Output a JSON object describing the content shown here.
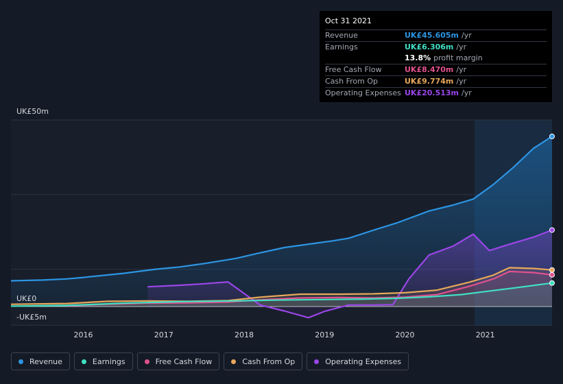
{
  "tooltip": {
    "date": "Oct 31 2021",
    "rows": [
      {
        "label": "Revenue",
        "value": "UK£45.605m",
        "unit": "/yr",
        "color": "#2d95e3"
      },
      {
        "label": "Earnings",
        "value": "UK£6.306m",
        "unit": "/yr",
        "color": "#40e0c4"
      },
      {
        "label": "",
        "value": "13.8%",
        "unit": "profit margin",
        "color": "#ffffff"
      },
      {
        "label": "Free Cash Flow",
        "value": "UK£8.470m",
        "unit": "/yr",
        "color": "#e0528e"
      },
      {
        "label": "Cash From Op",
        "value": "UK£9.774m",
        "unit": "/yr",
        "color": "#e8a85c"
      },
      {
        "label": "Operating Expenses",
        "value": "UK£20.513m",
        "unit": "/yr",
        "color": "#9b46e8"
      }
    ]
  },
  "legend": [
    {
      "label": "Revenue",
      "color": "#2d95e3"
    },
    {
      "label": "Earnings",
      "color": "#40e0c4"
    },
    {
      "label": "Free Cash Flow",
      "color": "#e0528e"
    },
    {
      "label": "Cash From Op",
      "color": "#e8a85c"
    },
    {
      "label": "Operating Expenses",
      "color": "#9b46e8"
    }
  ],
  "chart_data": {
    "type": "area",
    "y_tick_labels": [
      "UK£50m",
      "UK£0",
      "-UK£5m"
    ],
    "x_tick_labels": [
      "2016",
      "2017",
      "2018",
      "2019",
      "2020",
      "2021"
    ],
    "ylim": [
      -5,
      50
    ],
    "xlim": [
      2015.1,
      2021.83
    ],
    "grid": true,
    "legend_position": "bottom",
    "series": [
      {
        "name": "Revenue",
        "color": "#2d95e3",
        "x": [
          2015.1,
          2015.5,
          2015.8,
          2016.0,
          2016.5,
          2016.9,
          2017.2,
          2017.5,
          2017.9,
          2018.2,
          2018.5,
          2018.9,
          2019.1,
          2019.3,
          2019.6,
          2019.9,
          2020.3,
          2020.6,
          2020.85,
          2021.1,
          2021.35,
          2021.6,
          2021.83
        ],
        "y": [
          6.9,
          7.1,
          7.4,
          7.8,
          8.9,
          10.0,
          10.6,
          11.5,
          12.9,
          14.4,
          15.8,
          17.0,
          17.6,
          18.3,
          20.4,
          22.4,
          25.6,
          27.2,
          28.8,
          32.7,
          37.3,
          42.4,
          45.6
        ]
      },
      {
        "name": "Earnings",
        "color": "#40e0c4",
        "x": [
          2015.1,
          2015.8,
          2016.5,
          2017.2,
          2017.9,
          2018.3,
          2018.7,
          2019.1,
          2019.5,
          2019.9,
          2020.3,
          2020.7,
          2021.0,
          2021.4,
          2021.83
        ],
        "y": [
          0.1,
          0.3,
          0.9,
          1.3,
          1.5,
          1.7,
          1.8,
          1.9,
          2.0,
          2.2,
          2.6,
          3.2,
          4.0,
          5.1,
          6.3
        ]
      },
      {
        "name": "Free Cash Flow",
        "color": "#e0528e",
        "x": [
          2015.8,
          2016.3,
          2016.8,
          2017.3,
          2017.8,
          2018.2,
          2018.7,
          2019.2,
          2019.6,
          2020.0,
          2020.4,
          2020.8,
          2021.1,
          2021.3,
          2021.6,
          2021.83
        ],
        "y": [
          0.2,
          0.6,
          0.9,
          1.0,
          1.2,
          1.8,
          2.3,
          2.4,
          2.3,
          2.5,
          3.2,
          5.4,
          7.4,
          9.4,
          9.1,
          8.5
        ]
      },
      {
        "name": "Cash From Op",
        "color": "#e8a85c",
        "x": [
          2015.1,
          2015.8,
          2016.3,
          2016.8,
          2017.3,
          2017.8,
          2018.2,
          2018.7,
          2019.2,
          2019.6,
          2020.0,
          2020.4,
          2020.8,
          2021.1,
          2021.3,
          2021.6,
          2021.83
        ],
        "y": [
          0.6,
          0.8,
          1.4,
          1.5,
          1.4,
          1.6,
          2.5,
          3.3,
          3.3,
          3.4,
          3.7,
          4.4,
          6.5,
          8.4,
          10.4,
          10.2,
          9.8
        ]
      },
      {
        "name": "Operating Expenses",
        "color": "#9b46e8",
        "x": [
          2016.8,
          2017.2,
          2017.5,
          2017.8,
          2018.0,
          2018.2,
          2018.5,
          2018.8,
          2019.0,
          2019.3,
          2019.6,
          2019.85,
          2020.05,
          2020.3,
          2020.6,
          2020.85,
          2021.05,
          2021.3,
          2021.6,
          2021.83
        ],
        "y": [
          5.3,
          5.7,
          6.1,
          6.6,
          3.5,
          0.4,
          -1.2,
          -3.0,
          -1.3,
          0.4,
          0.4,
          0.5,
          7.4,
          13.8,
          16.2,
          19.4,
          15.0,
          16.7,
          18.6,
          20.5
        ]
      }
    ]
  }
}
